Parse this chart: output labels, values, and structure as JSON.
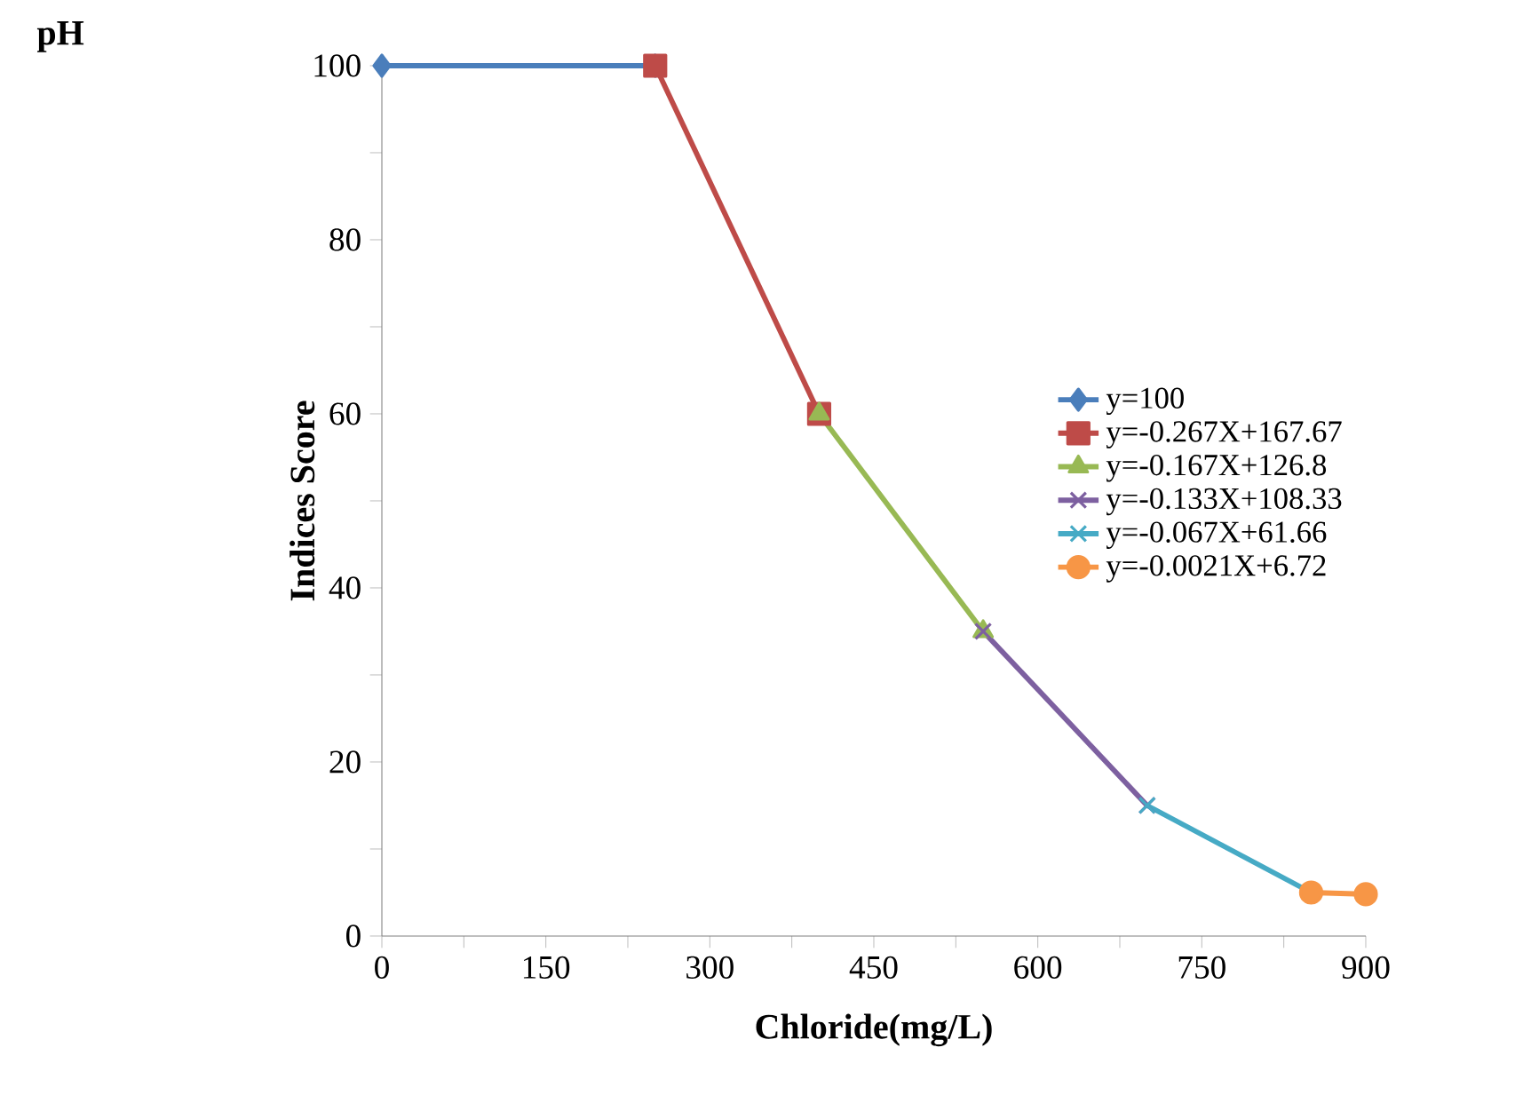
{
  "chart_data": {
    "type": "line",
    "title": "pH",
    "xlabel": "Chloride(mg/L)",
    "ylabel": "Indices Score",
    "xlim": [
      0,
      900
    ],
    "ylim": [
      0,
      100
    ],
    "xticks": [
      0,
      {
        "value": 75,
        "label": null
      },
      150,
      {
        "value": 225,
        "label": null
      },
      300,
      {
        "value": 375,
        "label": null
      },
      450,
      {
        "value": 525,
        "label": null
      },
      600,
      {
        "value": 675,
        "label": null
      },
      750,
      {
        "value": 825,
        "label": null
      },
      900
    ],
    "yticks": [
      0,
      {
        "value": 10,
        "label": null
      },
      20,
      {
        "value": 30,
        "label": null
      },
      40,
      {
        "value": 50,
        "label": null
      },
      60,
      {
        "value": 70,
        "label": null
      },
      80,
      {
        "value": 90,
        "label": null
      },
      100
    ],
    "grid": false,
    "legend": "right",
    "line_style": "solid",
    "series": [
      {
        "name": "y=100",
        "color": "#4a7ebb",
        "marker": "diamond",
        "x": [
          0,
          250
        ],
        "values": [
          100,
          100
        ]
      },
      {
        "name": "y=-0.267X+167.67",
        "color": "#be4b48",
        "marker": "square",
        "x": [
          250,
          400
        ],
        "values": [
          100,
          60
        ]
      },
      {
        "name": "y=-0.167X+126.8",
        "color": "#98b954",
        "marker": "triangle",
        "x": [
          400,
          550
        ],
        "values": [
          60,
          35
        ]
      },
      {
        "name": "y=-0.133X+108.33",
        "color": "#7d60a0",
        "marker": "cross",
        "x": [
          550,
          700
        ],
        "values": [
          35,
          15
        ]
      },
      {
        "name": "y=-0.067X+61.66",
        "color": "#46aac5",
        "marker": "cross",
        "x": [
          700,
          850
        ],
        "values": [
          15,
          5
        ]
      },
      {
        "name": "y=-0.0021X+6.72",
        "color": "#f79646",
        "marker": "circle",
        "x": [
          850,
          900
        ],
        "values": [
          5,
          4.8
        ]
      }
    ]
  }
}
